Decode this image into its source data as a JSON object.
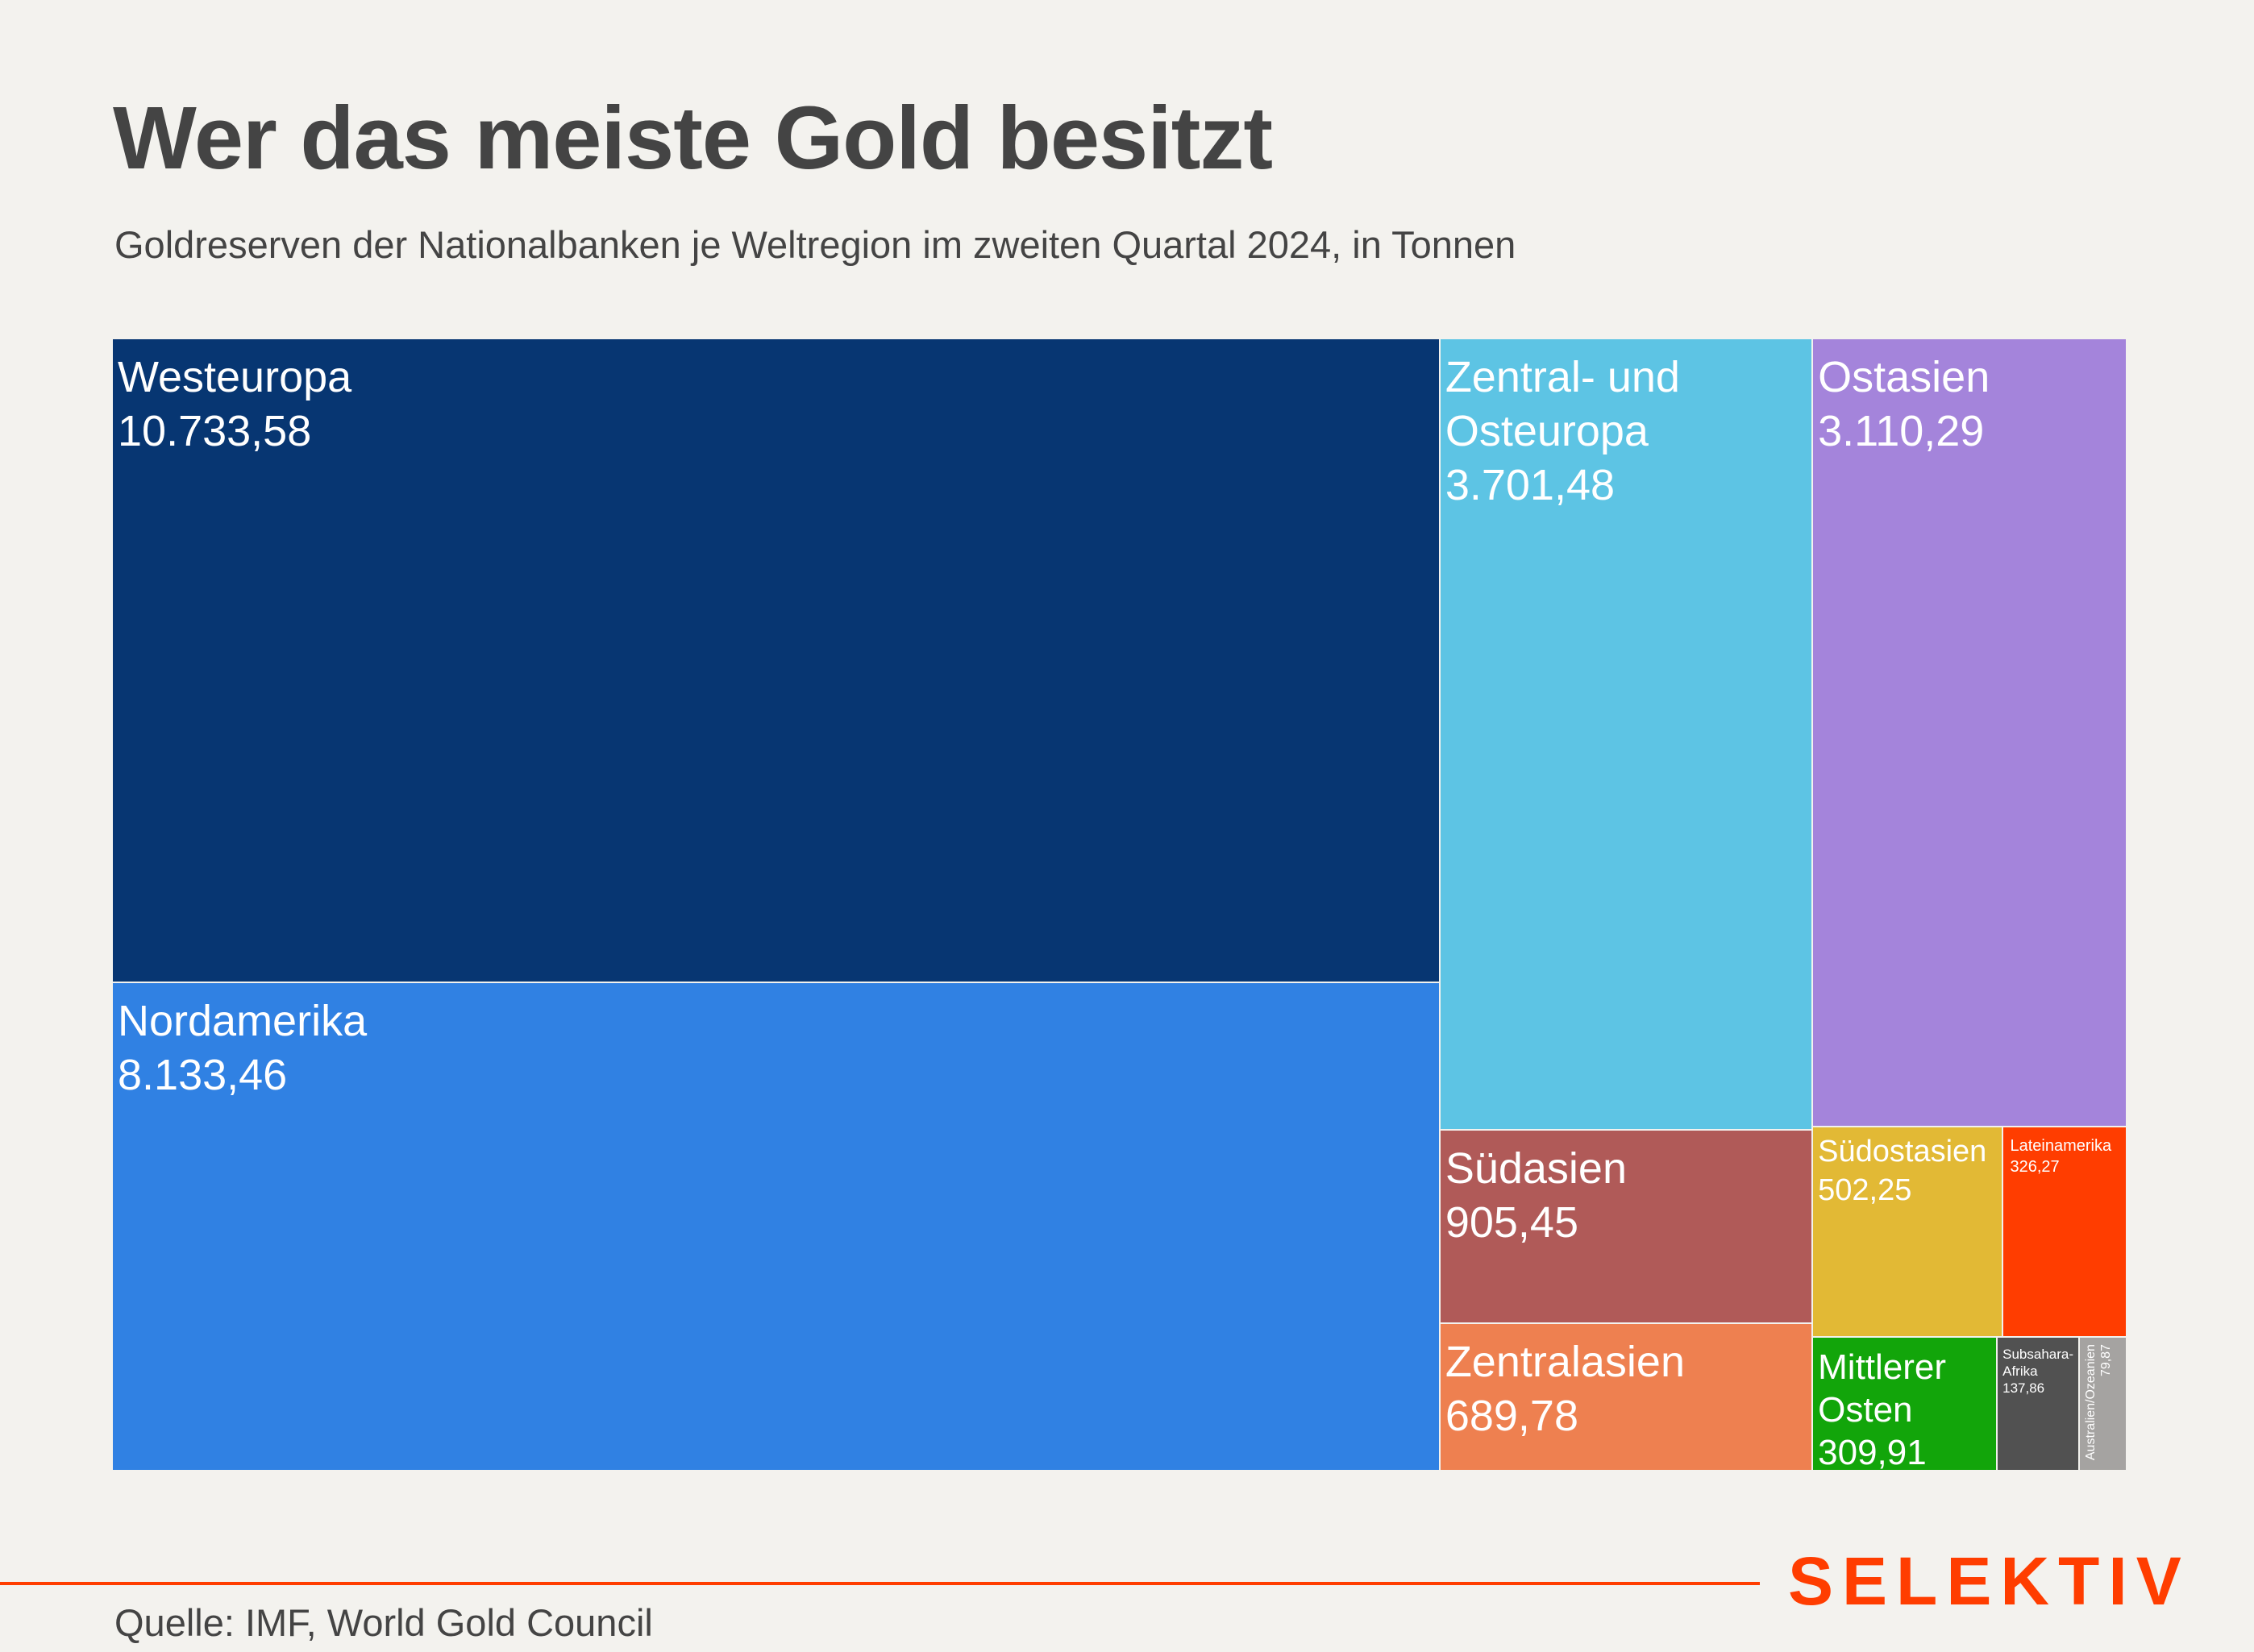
{
  "header": {
    "title": "Wer das meiste Gold besitzt",
    "subtitle": "Goldreserven der Nationalbanken je Weltregion im zweiten Quartal 2024, in Tonnen"
  },
  "footer": {
    "source": "Quelle: IMF, World Gold Council",
    "logo": "SELEKTIV",
    "accent_color": "#ff3d00"
  },
  "chart_data": {
    "type": "treemap",
    "title": "Wer das meiste Gold besitzt",
    "subtitle": "Goldreserven der Nationalbanken je Weltregion im zweiten Quartal 2024, in Tonnen",
    "unit": "Tonnen",
    "items": [
      {
        "name": "Westeuropa",
        "label": "Westeuropa",
        "value": 10733.58,
        "value_label": "10.733,58",
        "color": "#073672"
      },
      {
        "name": "Nordamerika",
        "label": "Nordamerika",
        "value": 8133.46,
        "value_label": "8.133,46",
        "color": "#3081e3"
      },
      {
        "name": "Zentral- und Osteuropa",
        "label": "Zentral- und\nOsteuropa",
        "value": 3701.48,
        "value_label": "3.701,48",
        "color": "#5dc4e4"
      },
      {
        "name": "Ostasien",
        "label": "Ostasien",
        "value": 3110.29,
        "value_label": "3.110,29",
        "color": "#a484db"
      },
      {
        "name": "Südasien",
        "label": "Südasien",
        "value": 905.45,
        "value_label": "905,45",
        "color": "#b05a58"
      },
      {
        "name": "Zentralasien",
        "label": "Zentralasien",
        "value": 689.78,
        "value_label": "689,78",
        "color": "#ee8050"
      },
      {
        "name": "Südostasien",
        "label": "Südostasien",
        "value": 502.25,
        "value_label": "502,25",
        "color": "#e2b935"
      },
      {
        "name": "Lateinamerika",
        "label": "Lateinamerika",
        "value": 326.27,
        "value_label": "326,27",
        "color": "#ff3d00"
      },
      {
        "name": "Mittlerer Osten",
        "label": "Mittlerer\nOsten",
        "value": 309.91,
        "value_label": "309,91",
        "color": "#12a50a"
      },
      {
        "name": "Subsahara-Afrika",
        "label": "Subsahara-\nAfrika",
        "value": 137.86,
        "value_label": "137,86",
        "color": "#515151"
      },
      {
        "name": "Australien/Ozeanien",
        "label": "Australien/Ozeanien",
        "value": 79.87,
        "value_label": "79,87",
        "color": "#a5a3a1"
      }
    ]
  }
}
